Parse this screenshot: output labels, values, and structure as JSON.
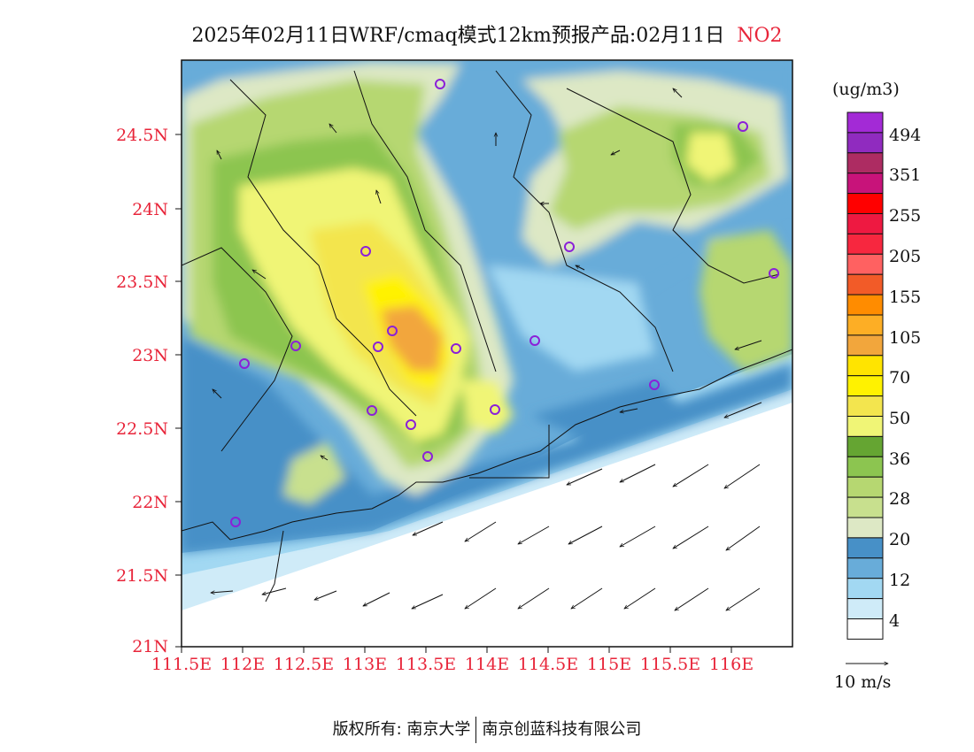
{
  "title": {
    "main": "2025年02月11日WRF/cmaq模式12km预报产品:02月11日",
    "species": "NO2",
    "species_color": "#e8253a"
  },
  "axes": {
    "y_ticks": [
      "24.5N",
      "24N",
      "23.5N",
      "23N",
      "22.5N",
      "22N",
      "21.5N",
      "21N"
    ],
    "x_ticks": [
      "111.5E",
      "112E",
      "112.5E",
      "113E",
      "113.5E",
      "114E",
      "114.5E",
      "115E",
      "115.5E",
      "116E"
    ],
    "tick_color": "#e8253a"
  },
  "colorbar": {
    "unit": "(ug/m3)",
    "labels": [
      "494",
      "351",
      "255",
      "205",
      "155",
      "105",
      "70",
      "50",
      "36",
      "28",
      "20",
      "12",
      "4"
    ],
    "colors": [
      "#a32ad6",
      "#902bbf",
      "#ad2c62",
      "#c8137a",
      "#ff0000",
      "#ee1941",
      "#f7273f",
      "#ff6161",
      "#f25b28",
      "#ff8c00",
      "#fdae25",
      "#f2a63c",
      "#ffe400",
      "#fff200",
      "#f3e54e",
      "#f0f576",
      "#65a532",
      "#8cc550",
      "#b6d771",
      "#c8e08e",
      "#dde8c5",
      "#4790c7",
      "#68acd9",
      "#a2d8f2",
      "#cfebf8",
      "#ffffff"
    ]
  },
  "wind_reference": "10 m/s",
  "footer": {
    "copyright": "版权所有: 南京大学",
    "company": "南京创蓝科技有限公司"
  }
}
